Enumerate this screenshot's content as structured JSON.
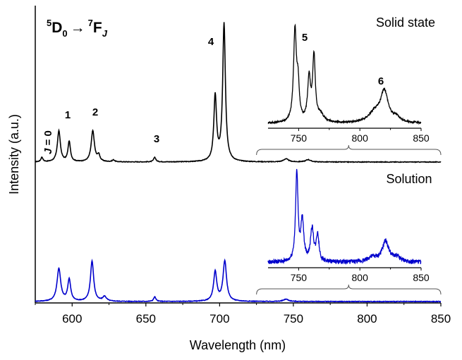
{
  "chart_data": {
    "type": "line",
    "title": "",
    "xlabel": "Wavelength (nm)",
    "ylabel": "Intensity (a.u.)",
    "xlim": [
      575,
      850
    ],
    "xticks": [
      600,
      650,
      700,
      750,
      800,
      850
    ],
    "grid": false,
    "yticks_labeled": false,
    "transition": {
      "upper": "D",
      "upper_sup": "5",
      "upper_sub": "0",
      "arrow": "→",
      "lower": "F",
      "lower_sup": "7",
      "lower_sub": "J"
    },
    "peak_labels": [
      {
        "text": "J = 0",
        "x": 580
      },
      {
        "text": "1",
        "x": 596
      },
      {
        "text": "2",
        "x": 614
      },
      {
        "text": "3",
        "x": 656
      },
      {
        "text": "4",
        "x": 697
      },
      {
        "text": "5",
        "x": 755
      },
      {
        "text": "6",
        "x": 820
      }
    ],
    "series": [
      {
        "name": "Solid state",
        "color": "#000000",
        "baseline": 0,
        "peaks": [
          {
            "x": 579.5,
            "h": 0.03,
            "w": 0.8
          },
          {
            "x": 591,
            "h": 0.2,
            "w": 1.2
          },
          {
            "x": 598,
            "h": 0.13,
            "w": 1.0
          },
          {
            "x": 614,
            "h": 0.2,
            "w": 1.3
          },
          {
            "x": 618,
            "h": 0.04,
            "w": 1.0
          },
          {
            "x": 628,
            "h": 0.012,
            "w": 1.0
          },
          {
            "x": 656,
            "h": 0.03,
            "w": 0.9
          },
          {
            "x": 697,
            "h": 0.42,
            "w": 1.1
          },
          {
            "x": 703,
            "h": 0.89,
            "w": 1.1
          },
          {
            "x": 745,
            "h": 0.02,
            "w": 2.0
          },
          {
            "x": 760,
            "h": 0.015,
            "w": 2.0
          }
        ]
      },
      {
        "name": "Solution",
        "color": "#0000cc",
        "baseline": 0,
        "peaks": [
          {
            "x": 591,
            "h": 0.21,
            "w": 1.5
          },
          {
            "x": 598,
            "h": 0.14,
            "w": 1.2
          },
          {
            "x": 613.5,
            "h": 0.26,
            "w": 1.3
          },
          {
            "x": 622,
            "h": 0.03,
            "w": 1.5
          },
          {
            "x": 656,
            "h": 0.03,
            "w": 0.9
          },
          {
            "x": 697,
            "h": 0.19,
            "w": 1.3
          },
          {
            "x": 703.5,
            "h": 0.26,
            "w": 1.4
          },
          {
            "x": 745,
            "h": 0.015,
            "w": 2.0
          }
        ]
      }
    ],
    "insets": [
      {
        "series": "Solid state",
        "color": "#000000",
        "xlim": [
          725,
          850
        ],
        "xticks": [
          750,
          800,
          850
        ],
        "noise": 0.01,
        "baseline": 0.05,
        "peaks": [
          {
            "x": 747,
            "h": 0.95,
            "w": 1.4
          },
          {
            "x": 749.5,
            "h": 0.35,
            "w": 1.2
          },
          {
            "x": 758.5,
            "h": 0.45,
            "w": 1.4
          },
          {
            "x": 762.5,
            "h": 0.68,
            "w": 1.3
          },
          {
            "x": 768,
            "h": 0.08,
            "w": 3.0
          },
          {
            "x": 812,
            "h": 0.1,
            "w": 6.0
          },
          {
            "x": 820,
            "h": 0.32,
            "w": 3.8
          },
          {
            "x": 830,
            "h": 0.05,
            "w": 3.0
          }
        ]
      },
      {
        "series": "Solution",
        "color": "#0000cc",
        "xlim": [
          725,
          850
        ],
        "xticks": [
          750,
          800,
          850
        ],
        "noise": 0.025,
        "baseline": 0.06,
        "peaks": [
          {
            "x": 748.5,
            "h": 1.0,
            "w": 1.2
          },
          {
            "x": 753,
            "h": 0.45,
            "w": 1.4
          },
          {
            "x": 761,
            "h": 0.37,
            "w": 1.5
          },
          {
            "x": 765.5,
            "h": 0.3,
            "w": 1.3
          },
          {
            "x": 810,
            "h": 0.05,
            "w": 5.0
          },
          {
            "x": 821,
            "h": 0.23,
            "w": 3.2
          },
          {
            "x": 830,
            "h": 0.05,
            "w": 3.5
          }
        ]
      }
    ]
  }
}
